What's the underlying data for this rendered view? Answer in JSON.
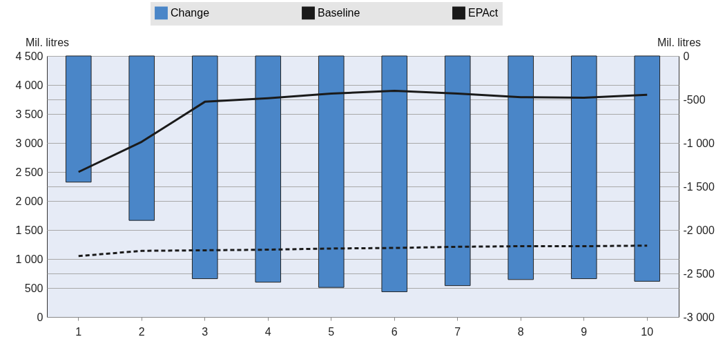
{
  "chart_data": {
    "type": "bar",
    "categories": [
      "1",
      "2",
      "3",
      "4",
      "5",
      "6",
      "7",
      "8",
      "9",
      "10"
    ],
    "series": [
      {
        "name": "Change",
        "axis": "y2",
        "color": "#4a86c8",
        "values": [
          -1450,
          -1890,
          -2560,
          -2600,
          -2660,
          -2710,
          -2640,
          -2570,
          -2560,
          -2590
        ]
      },
      {
        "name": "Baseline",
        "type": "line",
        "line_style": "solid",
        "color": "#1a1a1a",
        "values": [
          2500,
          3020,
          3710,
          3770,
          3850,
          3900,
          3850,
          3790,
          3780,
          3830
        ]
      },
      {
        "name": "EPAct",
        "type": "line",
        "line_style": "dashed",
        "color": "#1a1a1a",
        "values": [
          1050,
          1140,
          1150,
          1160,
          1180,
          1190,
          1210,
          1220,
          1220,
          1230
        ]
      }
    ],
    "ylabel": "Mil. litres",
    "y2label": "Mil. litres",
    "ylim": [
      0,
      4500
    ],
    "yticks": [
      0,
      500,
      {
        "value": 1000,
        "label": "1 000"
      },
      {
        "value": 1500,
        "label": "1 500"
      },
      {
        "value": 2000,
        "label": "2 000"
      },
      {
        "value": 2500,
        "label": "2 500"
      },
      {
        "value": 3000,
        "label": "3 000"
      },
      {
        "value": 3500,
        "label": "3 500"
      },
      {
        "value": 4000,
        "label": "4 000"
      },
      {
        "value": 4500,
        "label": "4 500"
      }
    ],
    "y2lim": [
      -3000,
      0
    ],
    "y2ticks": [
      {
        "value": -3000,
        "label": "-3 000"
      },
      {
        "value": -2500,
        "label": "-2 500"
      },
      {
        "value": -2000,
        "label": "-2 000"
      },
      {
        "value": -1500,
        "label": "-1 500"
      },
      {
        "value": -1000,
        "label": "-1 000"
      },
      -500,
      0
    ],
    "grid": "y",
    "legend": "top"
  }
}
